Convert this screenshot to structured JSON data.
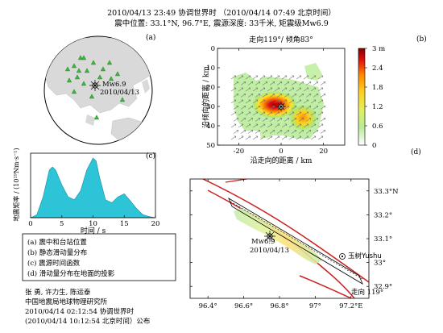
{
  "header": {
    "line1": "2010/04/13 23:49 协调世界时 （2010/04/14 07:49 北京时间）",
    "line2": "震中位置: 33.1°N, 96.7°E, 震源深度: 33千米, 矩震级Mw6.9"
  },
  "panel_labels": {
    "a": "(a)",
    "b": "(b)",
    "c": "(c)",
    "d": "(d)"
  },
  "globe": {
    "event_label": "Mw6.9",
    "event_date": "2010/04/13",
    "colors": {
      "land": "#d9d9d9",
      "station": "#33bb33"
    }
  },
  "chart_data": [
    {
      "id": "b",
      "type": "heatmap",
      "title": "走向119°/ 倾角83°",
      "xlabel": "沿走向的距离 / km",
      "ylabel": "沿倾向的距离 / km",
      "xticks": [
        "-20",
        "0",
        "20"
      ],
      "yticks": [
        "0",
        "10",
        "20",
        "30",
        "40",
        "50"
      ],
      "xlim": [
        -30,
        30
      ],
      "ylim": [
        0,
        50
      ],
      "hypocenter": {
        "x": 0,
        "y": 33
      },
      "colorbar": {
        "ticks": [
          "3 m",
          "2.4",
          "1.8",
          "1.2",
          "0.6",
          "0"
        ],
        "range": [
          0,
          3
        ]
      }
    },
    {
      "id": "c",
      "type": "area",
      "xlabel": "时间 / s",
      "ylabel": "地震矩率 / (10¹⁹Nm·s⁻¹)",
      "xticks": [
        "0",
        "5",
        "10",
        "15",
        "20"
      ],
      "xlim": [
        0,
        20
      ],
      "x": [
        0,
        1,
        2,
        3,
        3.5,
        4,
        5,
        6,
        7,
        8,
        9,
        10,
        10.5,
        11,
        12,
        13,
        14,
        15,
        16,
        17,
        18,
        19,
        20
      ],
      "y": [
        0,
        0.05,
        0.35,
        0.8,
        0.85,
        0.8,
        0.55,
        0.35,
        0.3,
        0.45,
        0.8,
        1.0,
        0.95,
        0.7,
        0.3,
        0.25,
        0.35,
        0.4,
        0.28,
        0.15,
        0.05,
        0.02,
        0
      ],
      "color": "#2ec4d8"
    },
    {
      "id": "d",
      "type": "map",
      "xticks": [
        "96.4°",
        "96.6°",
        "96.8°",
        "97°",
        "97.2°E"
      ],
      "yticks": [
        "33.3°N",
        "33.2°",
        "33.1°",
        "33°",
        "32.9°"
      ],
      "xlim": [
        96.3,
        97.3
      ],
      "ylim": [
        32.85,
        33.35
      ],
      "epicenter": {
        "lon": 96.7,
        "lat": 33.1,
        "label": "Mw6.9",
        "date": "2010/04/13"
      },
      "town": {
        "name": "玉树Yushu",
        "lon": 97.02,
        "lat": 33.0
      },
      "strike_label": "走向 119°"
    }
  ],
  "legend": {
    "items": [
      "(a) 震中和台站位置",
      "(b) 静态滑动量分布",
      "(c) 震源时间函数",
      "(d) 滑动量分布在地面的投影"
    ]
  },
  "footer": {
    "authors": "张 勇, 许力生, 陈运泰",
    "institute": "中国地震局地球物理研究所",
    "utc_time": "2010/04/14 02:12:54 协调世界时",
    "bj_time": "(2010/04/14 10:12:54 北京时间）公布"
  }
}
